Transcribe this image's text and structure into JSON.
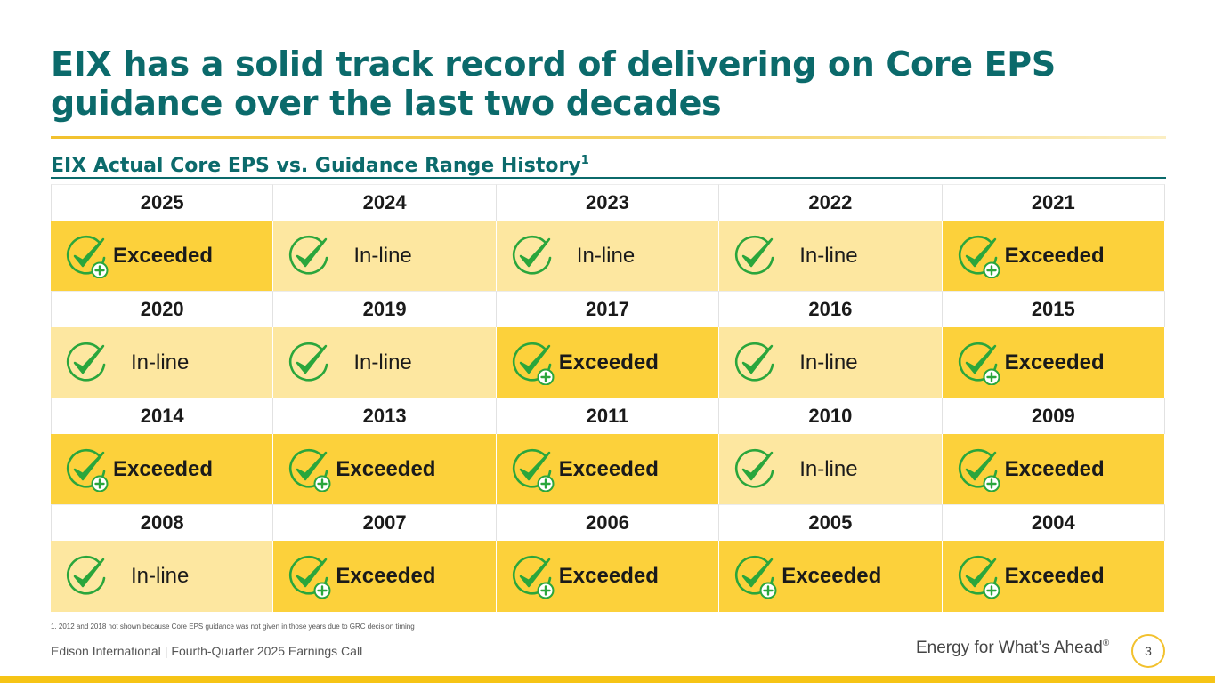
{
  "title": "EIX has a solid track record of delivering on Core EPS guidance over the last two decades",
  "subtitle": {
    "text": "EIX Actual Core EPS vs. Guidance Range History",
    "footnote_marker": "1"
  },
  "colors": {
    "teal": "#0b6a6b",
    "exceeded": "#fcd13b",
    "inline": "#fde7a0",
    "check_green": "#2aa63c",
    "accent_yellow": "#f6c416"
  },
  "icons": {
    "exceeded": "check-plus-icon",
    "inline": "check-icon"
  },
  "rows": [
    {
      "years": [
        "2025",
        "2024",
        "2023",
        "2022",
        "2021"
      ],
      "statuses": [
        {
          "type": "exceeded",
          "label": "Exceeded"
        },
        {
          "type": "inline",
          "label": "In-line"
        },
        {
          "type": "inline",
          "label": "In-line"
        },
        {
          "type": "inline",
          "label": "In-line"
        },
        {
          "type": "exceeded",
          "label": "Exceeded"
        }
      ]
    },
    {
      "years": [
        "2020",
        "2019",
        "2017",
        "2016",
        "2015"
      ],
      "statuses": [
        {
          "type": "inline",
          "label": "In-line"
        },
        {
          "type": "inline",
          "label": "In-line"
        },
        {
          "type": "exceeded",
          "label": "Exceeded"
        },
        {
          "type": "inline",
          "label": "In-line"
        },
        {
          "type": "exceeded",
          "label": "Exceeded"
        }
      ]
    },
    {
      "years": [
        "2014",
        "2013",
        "2011",
        "2010",
        "2009"
      ],
      "statuses": [
        {
          "type": "exceeded",
          "label": "Exceeded"
        },
        {
          "type": "exceeded",
          "label": "Exceeded"
        },
        {
          "type": "exceeded",
          "label": "Exceeded"
        },
        {
          "type": "inline",
          "label": "In-line"
        },
        {
          "type": "exceeded",
          "label": "Exceeded"
        }
      ]
    },
    {
      "years": [
        "2008",
        "2007",
        "2006",
        "2005",
        "2004"
      ],
      "statuses": [
        {
          "type": "inline",
          "label": "In-line"
        },
        {
          "type": "exceeded",
          "label": "Exceeded"
        },
        {
          "type": "exceeded",
          "label": "Exceeded"
        },
        {
          "type": "exceeded",
          "label": "Exceeded"
        },
        {
          "type": "exceeded",
          "label": "Exceeded"
        }
      ]
    }
  ],
  "footnote": "1.  2012 and 2018 not shown because Core EPS guidance was not given in those years due to GRC decision timing",
  "footer": {
    "company": "Edison International",
    "separator": "|",
    "event": "Fourth-Quarter 2025 Earnings Call",
    "tagline": "Energy for What’s Ahead",
    "tagline_mark": "®",
    "page_number": "3"
  }
}
